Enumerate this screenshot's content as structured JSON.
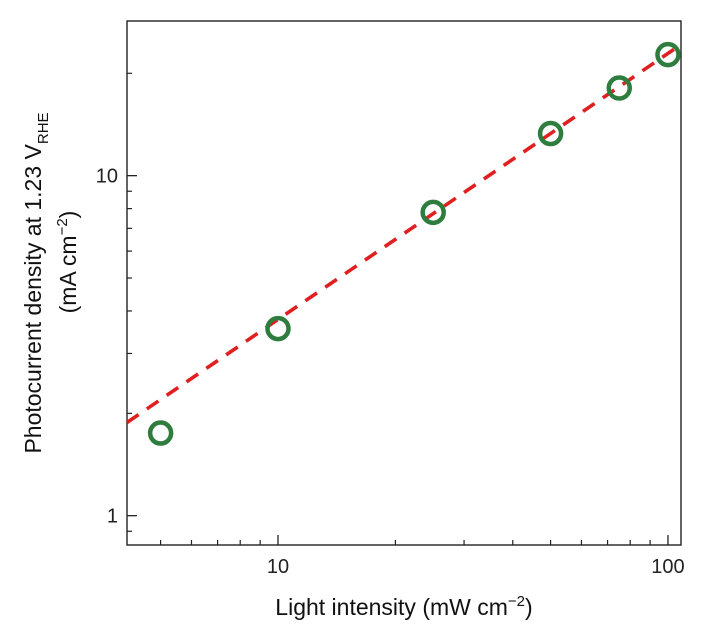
{
  "chart_data": {
    "type": "scatter",
    "xlabel": "Light intensity (mW cm",
    "xlabel_exponent": "−2",
    "xlabel_suffix": ")",
    "ylabel_line1": "Photocurrent density at 1.23 V",
    "ylabel_line1_subscript": "RHE",
    "ylabel_line2": "(mA cm",
    "ylabel_line2_exponent": "−2",
    "ylabel_line2_suffix": ")",
    "x_scale": "log",
    "y_scale": "log",
    "xlim": [
      4.1,
      108
    ],
    "ylim": [
      0.82,
      28.5
    ],
    "x_ticks": [
      10,
      100
    ],
    "x_tick_labels": [
      "10",
      "100"
    ],
    "y_ticks": [
      1,
      10
    ],
    "y_tick_labels": [
      "1",
      "10"
    ],
    "grid": false,
    "series": [
      {
        "marker": "open-circle",
        "color": "#2e7d3e",
        "x": [
          5,
          10,
          25,
          50,
          75,
          100
        ],
        "y": [
          1.75,
          3.55,
          7.8,
          13.3,
          18.1,
          22.7
        ]
      }
    ],
    "fit_line": {
      "style": "dashed",
      "color": "#e02020",
      "x": [
        4.1,
        108
      ],
      "y": [
        1.88,
        24.3
      ]
    }
  }
}
